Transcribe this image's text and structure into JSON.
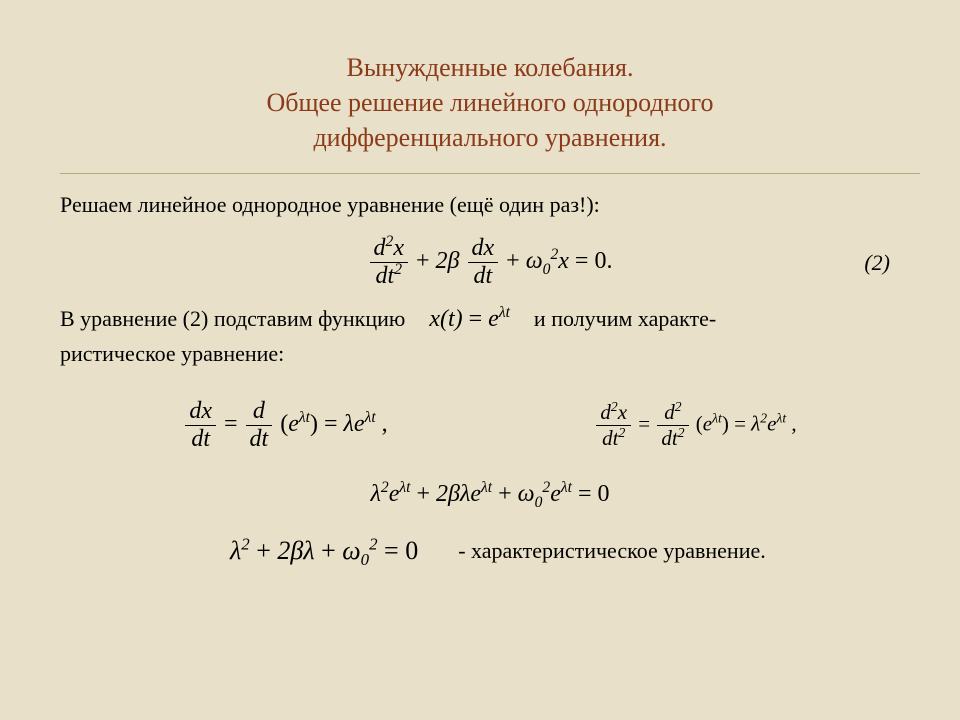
{
  "title": {
    "line1": "Вынужденные колебания.",
    "line2": "Общее решение линейного однородного",
    "line3": "дифференциального уравнения.",
    "color": "#8b3a1a",
    "fontsize": 26
  },
  "body": {
    "intro": "Решаем линейное однородное уравнение (ещё один раз!):",
    "eq_main_label": "(2)",
    "para2_a": "В уравнение (2) подставим функцию",
    "para2_b": "и получим характе-",
    "para2_c": "ристическое уравнение:",
    "char_caption": "- характеристическое уравнение."
  },
  "math": {
    "eq2": {
      "term1_num": "d",
      "term1_num_sup": "2",
      "term1_num_var": "x",
      "term1_den": "dt",
      "term1_den_sup": "2",
      "plus": " + ",
      "coef2": "2β",
      "term2_num": "dx",
      "term2_den": "dt",
      "coef3_base": "ω",
      "coef3_sub": "0",
      "coef3_sup": "2",
      "var3": "x",
      "rhs": " = 0."
    },
    "subst": {
      "lhs": "x(t)",
      "eq": " = ",
      "rhs_base": "e",
      "rhs_exp": "λt"
    },
    "deriv1": {
      "lhs_num": "dx",
      "lhs_den": "dt",
      "eq": " = ",
      "mid_num": "d",
      "mid_den": "dt",
      "arg_open": "(",
      "arg_base": "e",
      "arg_exp": "λt",
      "arg_close": ")",
      "res_coef": "λ",
      "res_base": "e",
      "res_exp": "λt",
      "tail": " ,"
    },
    "deriv2": {
      "lhs_num": "d",
      "lhs_num_sup": "2",
      "lhs_num_var": "x",
      "lhs_den": "dt",
      "lhs_den_sup": "2",
      "eq": " = ",
      "mid_num": "d",
      "mid_num_sup": "2",
      "mid_den": "dt",
      "mid_den_sup": "2",
      "arg_open": "(",
      "arg_base": "e",
      "arg_exp": "λt",
      "arg_close": ")",
      "res_coef": "λ",
      "res_coef_sup": "2",
      "res_base": "e",
      "res_exp": "λt",
      "tail": " ,"
    },
    "expanded": {
      "t1_coef": "λ",
      "t1_sup": "2",
      "t1_base": "e",
      "t1_exp": "λt",
      "plus": " + ",
      "t2_coef": "2βλ",
      "t2_base": "e",
      "t2_exp": "λt",
      "t3_coef_base": "ω",
      "t3_coef_sub": "0",
      "t3_coef_sup": "2",
      "t3_base": "e",
      "t3_exp": "λt",
      "rhs": " = 0"
    },
    "characteristic": {
      "t1": "λ",
      "t1_sup": "2",
      "plus": " + ",
      "t2": "2βλ",
      "t3_base": "ω",
      "t3_sub": "0",
      "t3_sup": "2",
      "rhs": " = 0"
    }
  },
  "style": {
    "background": "#e8e0c8",
    "body_fontsize": 22,
    "math_fontsize": 24
  }
}
